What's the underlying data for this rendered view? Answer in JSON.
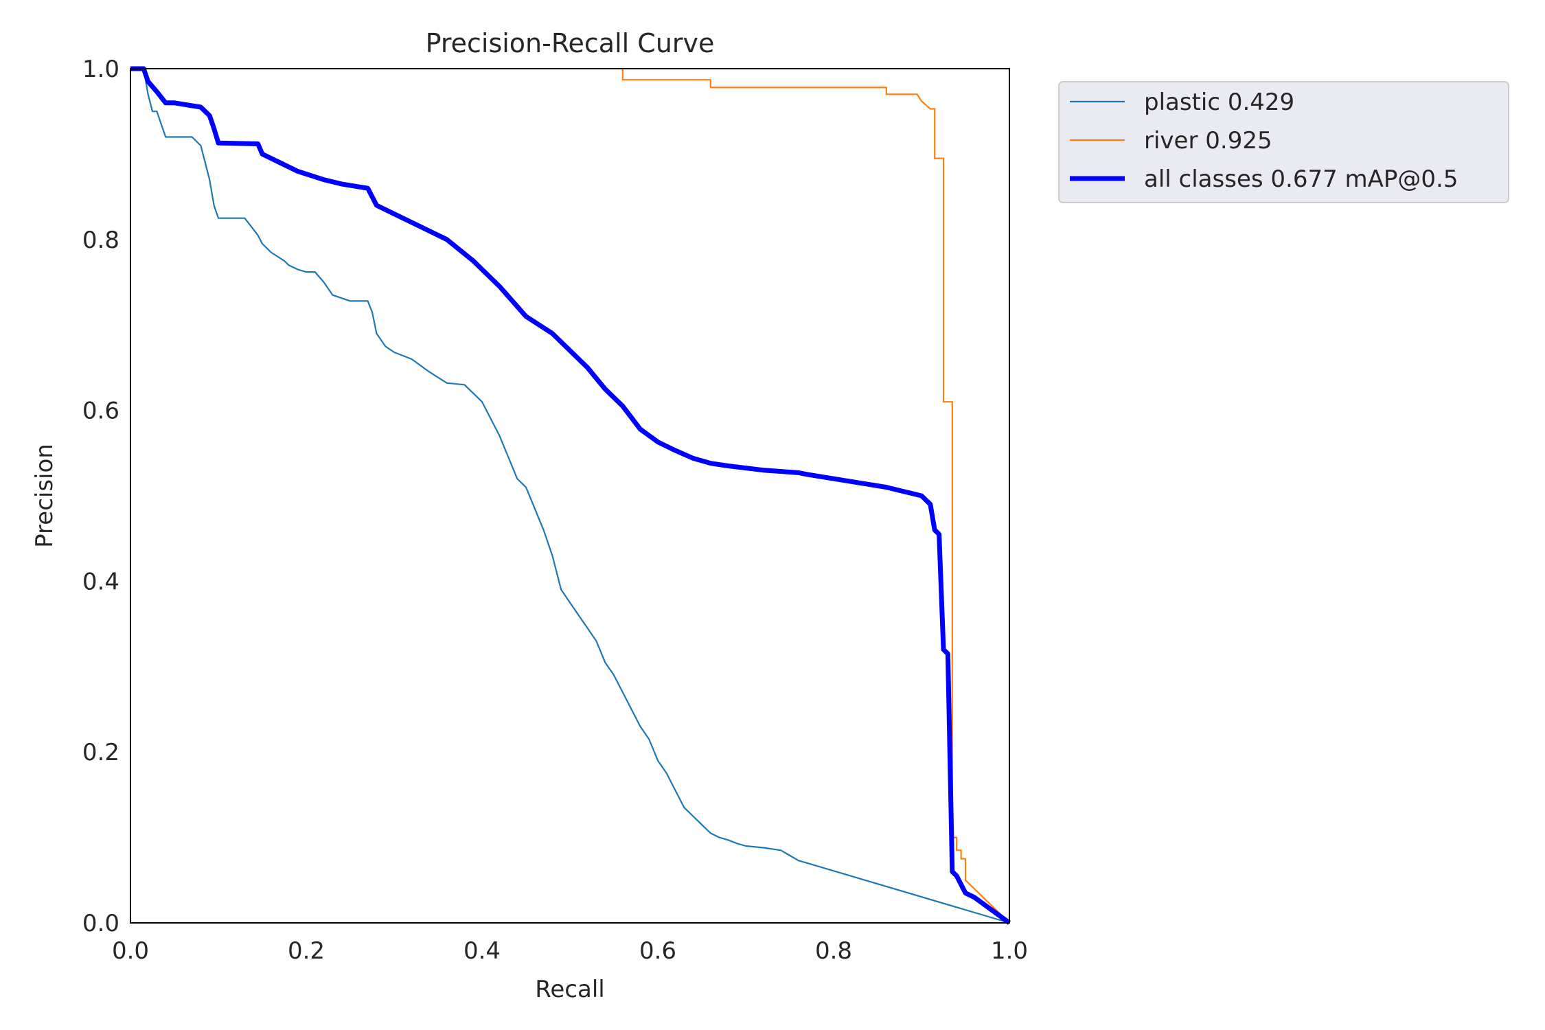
{
  "chart_data": {
    "type": "line",
    "title": "Precision-Recall Curve",
    "xlabel": "Recall",
    "ylabel": "Precision",
    "xlim": [
      0,
      1
    ],
    "ylim": [
      0,
      1
    ],
    "xticks": [
      "0.0",
      "0.2",
      "0.4",
      "0.6",
      "0.8",
      "1.0"
    ],
    "yticks": [
      "0.0",
      "0.2",
      "0.4",
      "0.6",
      "0.8",
      "1.0"
    ],
    "grid": false,
    "legend_placement": "outside-top-right",
    "series": [
      {
        "name": "plastic 0.429",
        "color": "#1f77b4",
        "x": [
          0,
          0.015,
          0.02,
          0.025,
          0.03,
          0.04,
          0.05,
          0.07,
          0.08,
          0.085,
          0.09,
          0.095,
          0.1,
          0.13,
          0.145,
          0.15,
          0.16,
          0.175,
          0.18,
          0.19,
          0.2,
          0.21,
          0.22,
          0.23,
          0.25,
          0.27,
          0.275,
          0.28,
          0.29,
          0.3,
          0.32,
          0.34,
          0.36,
          0.38,
          0.39,
          0.4,
          0.41,
          0.42,
          0.43,
          0.44,
          0.45,
          0.46,
          0.47,
          0.48,
          0.49,
          0.5,
          0.51,
          0.52,
          0.53,
          0.54,
          0.55,
          0.56,
          0.57,
          0.58,
          0.59,
          0.6,
          0.61,
          0.62,
          0.63,
          0.64,
          0.65,
          0.66,
          0.67,
          0.68,
          0.69,
          0.7,
          0.72,
          0.74,
          0.76,
          0.77,
          1.0
        ],
        "y": [
          1.0,
          1.0,
          0.97,
          0.95,
          0.95,
          0.92,
          0.92,
          0.92,
          0.91,
          0.89,
          0.87,
          0.84,
          0.825,
          0.825,
          0.805,
          0.795,
          0.785,
          0.775,
          0.77,
          0.765,
          0.762,
          0.762,
          0.75,
          0.735,
          0.728,
          0.728,
          0.715,
          0.69,
          0.675,
          0.668,
          0.66,
          0.645,
          0.632,
          0.63,
          0.62,
          0.61,
          0.59,
          0.57,
          0.545,
          0.52,
          0.51,
          0.485,
          0.46,
          0.43,
          0.39,
          0.375,
          0.36,
          0.345,
          0.33,
          0.305,
          0.29,
          0.27,
          0.25,
          0.23,
          0.215,
          0.19,
          0.175,
          0.155,
          0.135,
          0.125,
          0.115,
          0.105,
          0.1,
          0.097,
          0.093,
          0.09,
          0.088,
          0.085,
          0.073,
          0.07,
          0.0
        ]
      },
      {
        "name": "river 0.925",
        "color": "#ff7f0e",
        "x": [
          0.56,
          0.56,
          0.66,
          0.66,
          0.86,
          0.86,
          0.895,
          0.9,
          0.91,
          0.915,
          0.915,
          0.925,
          0.925,
          0.935,
          0.935,
          0.94,
          0.94,
          0.945,
          0.945,
          0.95,
          0.95,
          1.0
        ],
        "y": [
          1.0,
          0.987,
          0.987,
          0.978,
          0.978,
          0.97,
          0.97,
          0.962,
          0.953,
          0.953,
          0.895,
          0.895,
          0.61,
          0.61,
          0.1,
          0.1,
          0.085,
          0.085,
          0.075,
          0.075,
          0.05,
          0.0
        ]
      },
      {
        "name": "all classes 0.677 mAP@0.5",
        "color": "#0000ff",
        "x": [
          0,
          0.015,
          0.02,
          0.03,
          0.04,
          0.05,
          0.08,
          0.09,
          0.095,
          0.1,
          0.145,
          0.15,
          0.17,
          0.19,
          0.22,
          0.24,
          0.27,
          0.28,
          0.3,
          0.33,
          0.36,
          0.39,
          0.42,
          0.45,
          0.48,
          0.5,
          0.52,
          0.54,
          0.56,
          0.58,
          0.6,
          0.62,
          0.64,
          0.66,
          0.68,
          0.72,
          0.76,
          0.77,
          0.86,
          0.9,
          0.91,
          0.915,
          0.92,
          0.925,
          0.93,
          0.935,
          0.94,
          0.95,
          0.96,
          1.0
        ],
        "y": [
          1.0,
          1.0,
          0.985,
          0.973,
          0.96,
          0.96,
          0.955,
          0.945,
          0.93,
          0.913,
          0.912,
          0.9,
          0.89,
          0.88,
          0.87,
          0.865,
          0.86,
          0.84,
          0.83,
          0.815,
          0.8,
          0.775,
          0.745,
          0.71,
          0.69,
          0.67,
          0.65,
          0.625,
          0.605,
          0.578,
          0.563,
          0.553,
          0.544,
          0.538,
          0.535,
          0.53,
          0.527,
          0.525,
          0.51,
          0.5,
          0.49,
          0.46,
          0.455,
          0.32,
          0.315,
          0.06,
          0.055,
          0.035,
          0.03,
          0.0
        ]
      }
    ]
  }
}
